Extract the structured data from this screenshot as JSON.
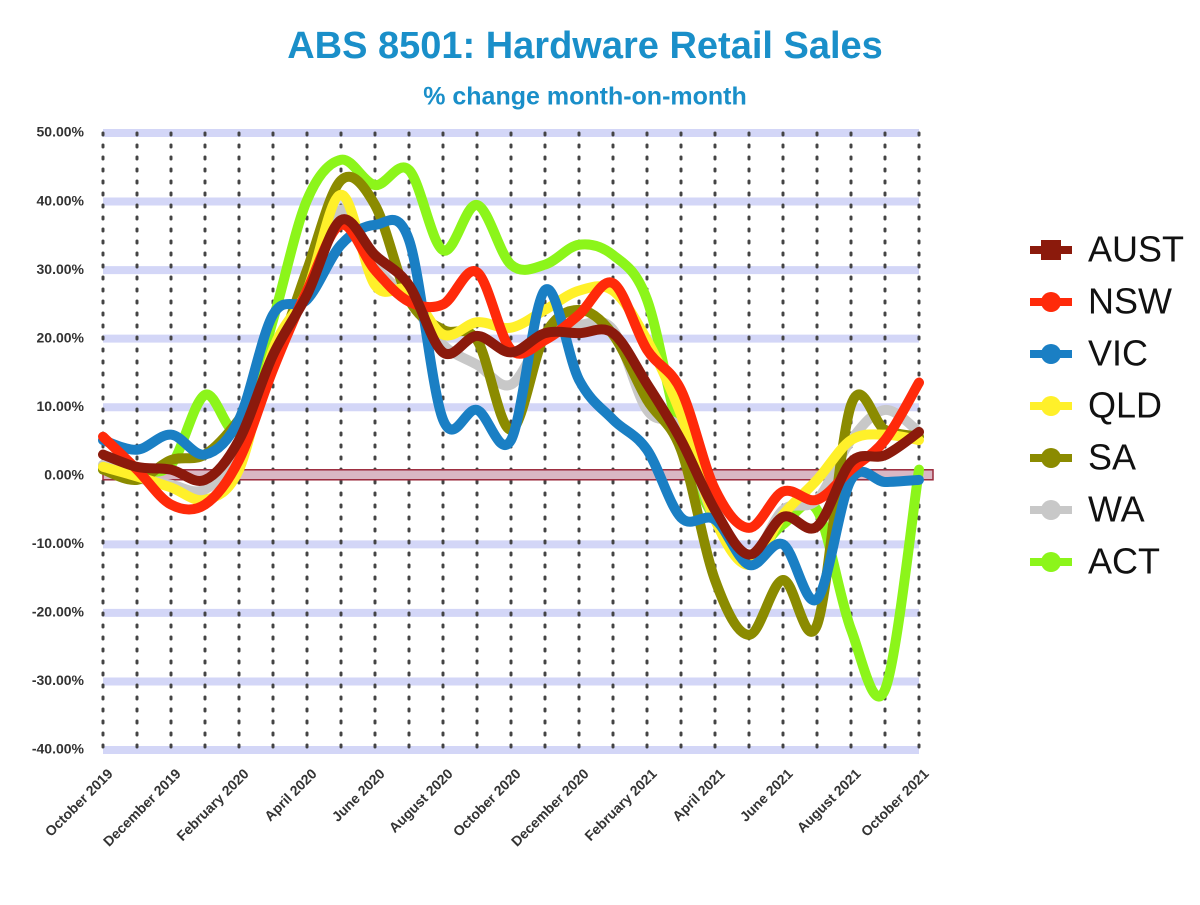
{
  "chart_data": {
    "type": "line",
    "title": "ABS 8501: Hardware Retail Sales",
    "subtitle": "% change month-on-month",
    "categories": [
      "October 2019",
      null,
      "December 2019",
      null,
      "February 2020",
      null,
      "April 2020",
      null,
      "June 2020",
      null,
      "August 2020",
      null,
      "October 2020",
      null,
      "December 2020",
      null,
      "February 2021",
      null,
      "April 2021",
      null,
      "June 2021",
      null,
      "August 2021",
      null,
      "October 2021"
    ],
    "ylim": [
      -40,
      50
    ],
    "yticks": [
      {
        "value": -40,
        "label": "-40.00%"
      },
      {
        "value": -30,
        "label": "-30.00%"
      },
      {
        "value": -20,
        "label": "-20.00%"
      },
      {
        "value": -10,
        "label": "-10.00%"
      },
      {
        "value": 0,
        "label": "0.00%"
      },
      {
        "value": 10,
        "label": "10.00%"
      },
      {
        "value": 20,
        "label": "20.00%"
      },
      {
        "value": 30,
        "label": "30.00%"
      },
      {
        "value": 40,
        "label": "40.00%"
      },
      {
        "value": 50,
        "label": "50.00%"
      }
    ],
    "grid": true,
    "legend": "right",
    "series": [
      {
        "name": "AUST",
        "color": "#8b1a0c",
        "values": [
          3.1,
          1.3,
          0.9,
          -0.6,
          5.2,
          17.6,
          26.4,
          37.3,
          32.2,
          27.8,
          18,
          20.4,
          18,
          20.8,
          20.8,
          20.8,
          13.4,
          5.2,
          -5,
          -11.5,
          -6,
          -7.4,
          2,
          3,
          6.4
        ]
      },
      {
        "name": "NSW",
        "color": "#ff2a0a",
        "values": [
          5.7,
          0.9,
          -4.2,
          -4.2,
          2.3,
          15.5,
          27,
          36.6,
          30,
          25.4,
          25,
          29.7,
          18.4,
          19.8,
          23.5,
          28.1,
          18.4,
          12.5,
          -2,
          -7.6,
          -2.3,
          -3.5,
          0.9,
          5.2,
          13.6
        ]
      },
      {
        "name": "VIC",
        "color": "#1a7fc4",
        "values": [
          5.2,
          3.8,
          6,
          3.1,
          8.2,
          23.5,
          25.7,
          33.7,
          36.6,
          34.4,
          8.2,
          9.6,
          5.2,
          27.1,
          14,
          8.2,
          3.8,
          -6.1,
          -6.4,
          -13,
          -10,
          -18,
          -0.6,
          -0.9,
          -0.6
        ]
      },
      {
        "name": "QLD",
        "color": "#fff02a",
        "values": [
          1.3,
          -0.1,
          -1.7,
          -3.5,
          0.9,
          18.4,
          27,
          41,
          27.8,
          27,
          20.6,
          22.4,
          21.6,
          24.2,
          27,
          27,
          19.8,
          8.9,
          -6.4,
          -13,
          -5.7,
          -0.6,
          5.2,
          6,
          5.2
        ]
      },
      {
        "name": "SA",
        "color": "#8b8b00",
        "values": [
          0.9,
          -0.6,
          2.3,
          3.1,
          8.2,
          16.2,
          30,
          43.1,
          39.5,
          25.7,
          21.3,
          19.8,
          6.7,
          20.6,
          24.2,
          20.6,
          11.1,
          3.8,
          -15.2,
          -23.2,
          -15.2,
          -21.8,
          10.3,
          6.7,
          5.7
        ]
      },
      {
        "name": "WA",
        "color": "#c8c8c8",
        "values": [
          1.6,
          -0.3,
          -1.3,
          -2,
          3.8,
          16.9,
          27,
          38.8,
          30.6,
          25.7,
          19.1,
          16.2,
          13.3,
          20.6,
          22,
          21.3,
          9.6,
          6.7,
          -6.4,
          -12.2,
          -5,
          -3.5,
          5.2,
          9.6,
          6.4
        ]
      },
      {
        "name": "ACT",
        "color": "#8cf51a",
        "values": [
          0.9,
          0.9,
          1.6,
          11.8,
          6.7,
          22.7,
          40.2,
          46.1,
          42.4,
          44.6,
          32.9,
          39.5,
          30.8,
          30.8,
          33.7,
          32.2,
          25.7,
          5.2,
          -6.4,
          -11.5,
          -7.1,
          -5,
          -22.4,
          -31.2,
          0.9
        ]
      }
    ]
  }
}
